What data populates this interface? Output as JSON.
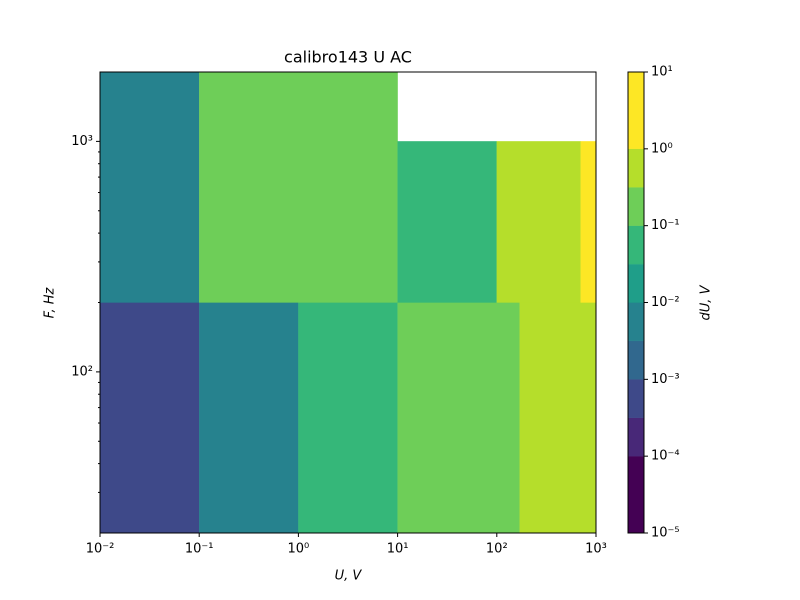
{
  "chart_data": {
    "type": "mesh",
    "title": "calibro143 U AC",
    "x_label": "U, V",
    "y_label": "F, Hz",
    "colorbar_label": "dU, V",
    "log_x": true,
    "log_y": true,
    "log_color": true,
    "xlim": [
      0.01,
      1000
    ],
    "ylim": [
      20,
      2000
    ],
    "xticks": [
      {
        "value": 0.01,
        "label": "10⁻²"
      },
      {
        "value": 0.1,
        "label": "10⁻¹"
      },
      {
        "value": 1,
        "label": "10⁰"
      },
      {
        "value": 10,
        "label": "10¹"
      },
      {
        "value": 100,
        "label": "10²"
      },
      {
        "value": 1000,
        "label": "10³"
      }
    ],
    "yticks": [
      {
        "value": 100,
        "label": "10²"
      },
      {
        "value": 1000,
        "label": "10³"
      }
    ],
    "yminor_ticks": [
      30,
      40,
      50,
      60,
      70,
      80,
      90,
      200,
      300,
      400,
      500,
      600,
      700,
      800,
      900
    ],
    "cells": [
      {
        "x": [
          0.01,
          0.1
        ],
        "y": [
          20,
          200
        ],
        "value": 0.0005
      },
      {
        "x": [
          0.1,
          1
        ],
        "y": [
          20,
          200
        ],
        "value": 0.005
      },
      {
        "x": [
          1,
          10
        ],
        "y": [
          20,
          200
        ],
        "value": 0.05
      },
      {
        "x": [
          10,
          170
        ],
        "y": [
          20,
          200
        ],
        "value": 0.2
      },
      {
        "x": [
          170,
          1000
        ],
        "y": [
          20,
          200
        ],
        "value": 0.5
      },
      {
        "x": [
          0.01,
          0.1
        ],
        "y": [
          200,
          2000
        ],
        "value": 0.005
      },
      {
        "x": [
          0.1,
          10
        ],
        "y": [
          200,
          2000
        ],
        "value": 0.2
      },
      {
        "x": [
          10,
          100
        ],
        "y": [
          200,
          1000
        ],
        "value": 0.05
      },
      {
        "x": [
          100,
          700
        ],
        "y": [
          200,
          1000
        ],
        "value": 0.5
      },
      {
        "x": [
          700,
          1000
        ],
        "y": [
          200,
          1000
        ],
        "value": 2
      }
    ],
    "color_bounds": [
      1e-05,
      0.0001,
      0.000316,
      0.001,
      0.00316,
      0.01,
      0.0316,
      0.1,
      0.316,
      1,
      10
    ],
    "colors": [
      "#440154",
      "#482878",
      "#3e4989",
      "#31688e",
      "#26828e",
      "#1f9e89",
      "#35b779",
      "#6ece58",
      "#b5de2b",
      "#fde725"
    ],
    "clim": [
      1e-05,
      10
    ],
    "cticks": [
      {
        "value": 1e-05,
        "label": "10⁻⁵"
      },
      {
        "value": 0.0001,
        "label": "10⁻⁴"
      },
      {
        "value": 0.001,
        "label": "10⁻³"
      },
      {
        "value": 0.01,
        "label": "10⁻²"
      },
      {
        "value": 0.1,
        "label": "10⁻¹"
      },
      {
        "value": 1,
        "label": "10⁰"
      },
      {
        "value": 10,
        "label": "10¹"
      }
    ]
  }
}
